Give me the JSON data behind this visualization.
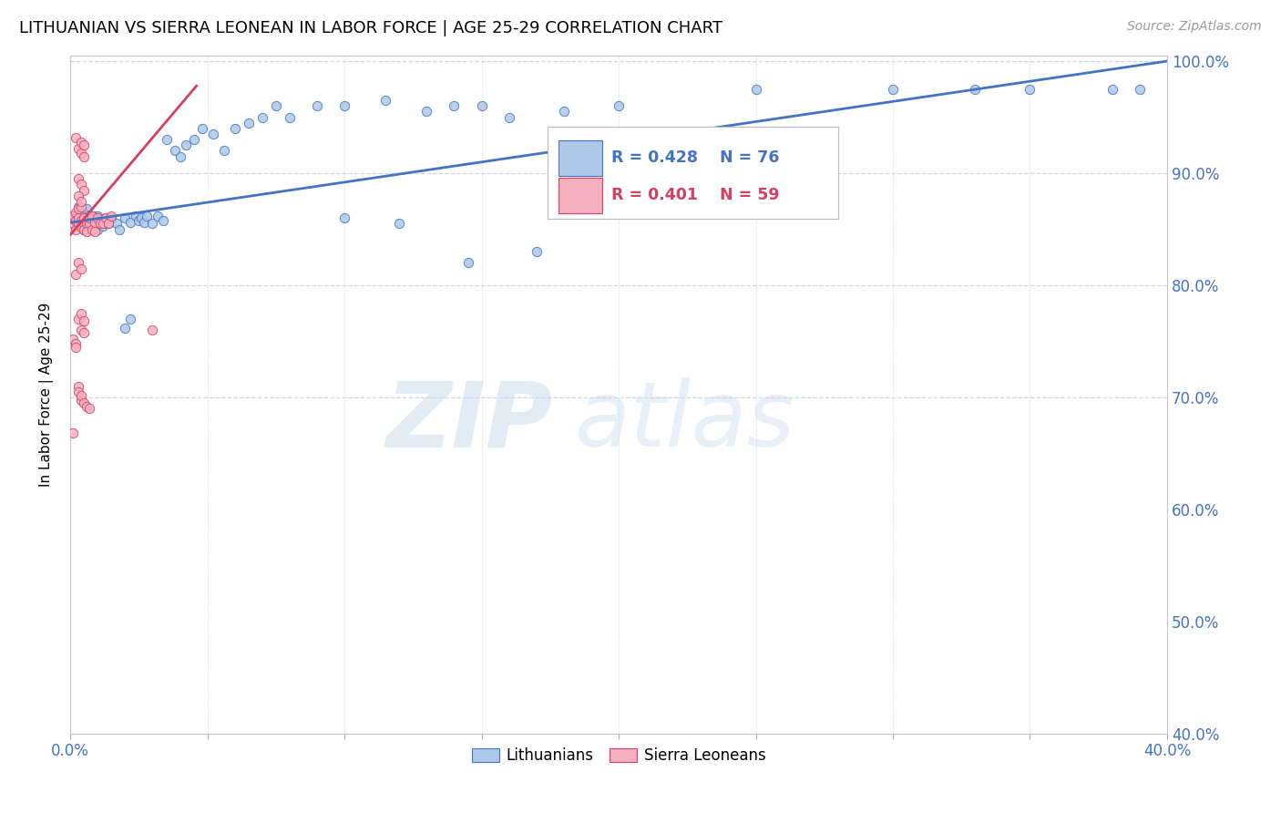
{
  "title": "LITHUANIAN VS SIERRA LEONEAN IN LABOR FORCE | AGE 25-29 CORRELATION CHART",
  "source": "Source: ZipAtlas.com",
  "ylabel": "In Labor Force | Age 25-29",
  "xlim": [
    0.0,
    0.4
  ],
  "ylim": [
    0.4,
    1.005
  ],
  "R_blue": 0.428,
  "N_blue": 76,
  "R_pink": 0.401,
  "N_pink": 59,
  "blue_color": "#adc8e8",
  "pink_color": "#f5b0c0",
  "line_blue": "#4472c4",
  "line_pink": "#d44060",
  "legend_blue": "Lithuanians",
  "legend_pink": "Sierra Leoneans",
  "blue_points": [
    [
      0.001,
      0.855
    ],
    [
      0.002,
      0.862
    ],
    [
      0.003,
      0.858
    ],
    [
      0.003,
      0.87
    ],
    [
      0.004,
      0.855
    ],
    [
      0.004,
      0.862
    ],
    [
      0.005,
      0.85
    ],
    [
      0.005,
      0.858
    ],
    [
      0.005,
      0.865
    ],
    [
      0.006,
      0.855
    ],
    [
      0.006,
      0.86
    ],
    [
      0.006,
      0.868
    ],
    [
      0.007,
      0.852
    ],
    [
      0.007,
      0.858
    ],
    [
      0.007,
      0.863
    ],
    [
      0.008,
      0.855
    ],
    [
      0.008,
      0.86
    ],
    [
      0.009,
      0.855
    ],
    [
      0.009,
      0.862
    ],
    [
      0.01,
      0.85
    ],
    [
      0.01,
      0.856
    ],
    [
      0.01,
      0.862
    ],
    [
      0.011,
      0.855
    ],
    [
      0.011,
      0.858
    ],
    [
      0.012,
      0.853
    ],
    [
      0.012,
      0.858
    ],
    [
      0.013,
      0.855
    ],
    [
      0.013,
      0.86
    ],
    [
      0.014,
      0.855
    ],
    [
      0.015,
      0.86
    ],
    [
      0.017,
      0.855
    ],
    [
      0.018,
      0.85
    ],
    [
      0.02,
      0.86
    ],
    [
      0.022,
      0.856
    ],
    [
      0.024,
      0.862
    ],
    [
      0.025,
      0.858
    ],
    [
      0.026,
      0.86
    ],
    [
      0.027,
      0.856
    ],
    [
      0.028,
      0.862
    ],
    [
      0.03,
      0.855
    ],
    [
      0.032,
      0.862
    ],
    [
      0.034,
      0.858
    ],
    [
      0.035,
      0.93
    ],
    [
      0.038,
      0.92
    ],
    [
      0.04,
      0.915
    ],
    [
      0.042,
      0.925
    ],
    [
      0.045,
      0.93
    ],
    [
      0.048,
      0.94
    ],
    [
      0.052,
      0.935
    ],
    [
      0.056,
      0.92
    ],
    [
      0.06,
      0.94
    ],
    [
      0.065,
      0.945
    ],
    [
      0.07,
      0.95
    ],
    [
      0.075,
      0.96
    ],
    [
      0.08,
      0.95
    ],
    [
      0.09,
      0.96
    ],
    [
      0.1,
      0.96
    ],
    [
      0.115,
      0.965
    ],
    [
      0.13,
      0.955
    ],
    [
      0.14,
      0.96
    ],
    [
      0.15,
      0.96
    ],
    [
      0.16,
      0.95
    ],
    [
      0.18,
      0.955
    ],
    [
      0.2,
      0.96
    ],
    [
      0.25,
      0.975
    ],
    [
      0.3,
      0.975
    ],
    [
      0.33,
      0.975
    ],
    [
      0.35,
      0.975
    ],
    [
      0.38,
      0.975
    ],
    [
      0.39,
      0.975
    ],
    [
      0.012,
      0.856
    ],
    [
      0.014,
      0.856
    ],
    [
      0.02,
      0.762
    ],
    [
      0.022,
      0.77
    ],
    [
      0.1,
      0.86
    ],
    [
      0.12,
      0.855
    ],
    [
      0.145,
      0.82
    ],
    [
      0.17,
      0.83
    ]
  ],
  "pink_points": [
    [
      0.001,
      0.855
    ],
    [
      0.001,
      0.862
    ],
    [
      0.002,
      0.85
    ],
    [
      0.002,
      0.858
    ],
    [
      0.002,
      0.865
    ],
    [
      0.003,
      0.855
    ],
    [
      0.003,
      0.86
    ],
    [
      0.003,
      0.868
    ],
    [
      0.004,
      0.852
    ],
    [
      0.004,
      0.858
    ],
    [
      0.004,
      0.87
    ],
    [
      0.005,
      0.855
    ],
    [
      0.005,
      0.86
    ],
    [
      0.005,
      0.85
    ],
    [
      0.006,
      0.855
    ],
    [
      0.006,
      0.848
    ],
    [
      0.007,
      0.855
    ],
    [
      0.007,
      0.86
    ],
    [
      0.008,
      0.85
    ],
    [
      0.008,
      0.862
    ],
    [
      0.009,
      0.848
    ],
    [
      0.009,
      0.856
    ],
    [
      0.01,
      0.86
    ],
    [
      0.011,
      0.855
    ],
    [
      0.012,
      0.855
    ],
    [
      0.013,
      0.86
    ],
    [
      0.014,
      0.855
    ],
    [
      0.015,
      0.862
    ],
    [
      0.002,
      0.932
    ],
    [
      0.003,
      0.922
    ],
    [
      0.004,
      0.918
    ],
    [
      0.004,
      0.928
    ],
    [
      0.005,
      0.915
    ],
    [
      0.005,
      0.925
    ],
    [
      0.003,
      0.895
    ],
    [
      0.004,
      0.89
    ],
    [
      0.005,
      0.885
    ],
    [
      0.003,
      0.88
    ],
    [
      0.004,
      0.875
    ],
    [
      0.002,
      0.81
    ],
    [
      0.003,
      0.82
    ],
    [
      0.004,
      0.815
    ],
    [
      0.003,
      0.77
    ],
    [
      0.004,
      0.775
    ],
    [
      0.005,
      0.768
    ],
    [
      0.004,
      0.76
    ],
    [
      0.005,
      0.758
    ],
    [
      0.001,
      0.752
    ],
    [
      0.002,
      0.748
    ],
    [
      0.003,
      0.71
    ],
    [
      0.003,
      0.705
    ],
    [
      0.004,
      0.698
    ],
    [
      0.004,
      0.702
    ],
    [
      0.005,
      0.695
    ],
    [
      0.006,
      0.692
    ],
    [
      0.007,
      0.69
    ],
    [
      0.001,
      0.668
    ],
    [
      0.002,
      0.745
    ],
    [
      0.03,
      0.76
    ]
  ]
}
